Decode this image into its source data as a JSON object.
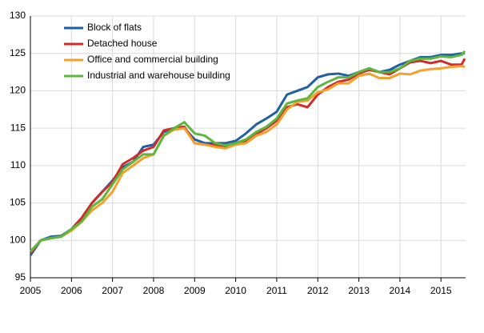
{
  "chart_data": {
    "type": "line",
    "x": [
      2005,
      2005.25,
      2005.5,
      2005.75,
      2006,
      2006.25,
      2006.5,
      2006.75,
      2007,
      2007.25,
      2007.5,
      2007.75,
      2008,
      2008.25,
      2008.5,
      2008.75,
      2009,
      2009.25,
      2009.5,
      2009.75,
      2010,
      2010.25,
      2010.5,
      2010.75,
      2011,
      2011.25,
      2011.5,
      2011.75,
      2012,
      2012.25,
      2012.5,
      2012.75,
      2013,
      2013.25,
      2013.5,
      2013.75,
      2014,
      2014.25,
      2014.5,
      2014.75,
      2015,
      2015.25,
      2015.5,
      2015.58
    ],
    "series": [
      {
        "name": "Block of flats",
        "color": "#1f5fa6",
        "values": [
          98,
          100,
          100.5,
          100.6,
          101.5,
          103,
          105,
          106.5,
          108,
          109.8,
          110.5,
          112.5,
          112.8,
          114.5,
          115,
          115,
          113.5,
          113,
          113,
          113,
          113.3,
          114.3,
          115.5,
          116.3,
          117.2,
          119.5,
          120,
          120.5,
          121.8,
          122.2,
          122.3,
          122,
          122.5,
          123,
          122.5,
          122.8,
          123.5,
          124,
          124.5,
          124.5,
          124.8,
          124.8,
          125,
          125
        ]
      },
      {
        "name": "Detached house",
        "color": "#d42a2a",
        "values": [
          98.3,
          100,
          100.3,
          100.5,
          101.5,
          103,
          105,
          106.5,
          107.8,
          110.2,
          111,
          112,
          112.5,
          114.7,
          115,
          115.2,
          113,
          112.8,
          112.8,
          112.5,
          112.8,
          113.3,
          114.2,
          115,
          116,
          117.8,
          118.2,
          117.8,
          119.5,
          120.5,
          121.2,
          121.5,
          122.3,
          122.8,
          122.5,
          122.2,
          123,
          123.8,
          124,
          123.7,
          124,
          123.5,
          123.5,
          124.3
        ]
      },
      {
        "name": "Office and commercial building",
        "color": "#f5a02e",
        "values": [
          98.5,
          100,
          100.3,
          100.5,
          101.3,
          102.5,
          104,
          105,
          106.5,
          109,
          110,
          111,
          111.5,
          114,
          114.8,
          115,
          113,
          112.8,
          112.5,
          112.3,
          112.8,
          113,
          114,
          114.5,
          115.5,
          117.5,
          118.5,
          118.7,
          119.8,
          120.2,
          121,
          121,
          122,
          122.3,
          121.7,
          121.7,
          122.3,
          122.2,
          122.7,
          122.9,
          123,
          123.2,
          123.3,
          123.2
        ]
      },
      {
        "name": "Industrial and warehouse building",
        "color": "#5cb83c",
        "values": [
          98.5,
          100,
          100.3,
          100.5,
          101.5,
          102.5,
          104.5,
          105.5,
          107.5,
          109.5,
          110.5,
          111.5,
          111.5,
          114,
          115,
          115.8,
          114.3,
          114,
          113,
          112.7,
          113,
          113.5,
          114.5,
          115.2,
          116.3,
          118.3,
          118.7,
          119,
          120.5,
          121.2,
          121.8,
          121.8,
          122.5,
          123,
          122.5,
          122.5,
          123,
          124,
          124.3,
          124.3,
          124.6,
          124.5,
          124.8,
          125.3
        ]
      }
    ],
    "xlim": [
      2005,
      2015.6
    ],
    "xticks": [
      2005,
      2006,
      2007,
      2008,
      2009,
      2010,
      2011,
      2012,
      2013,
      2014,
      2015
    ],
    "ylim": [
      95,
      130
    ],
    "yticks": [
      95,
      100,
      105,
      110,
      115,
      120,
      125,
      130
    ],
    "grid": true,
    "legend": "upper-left"
  }
}
